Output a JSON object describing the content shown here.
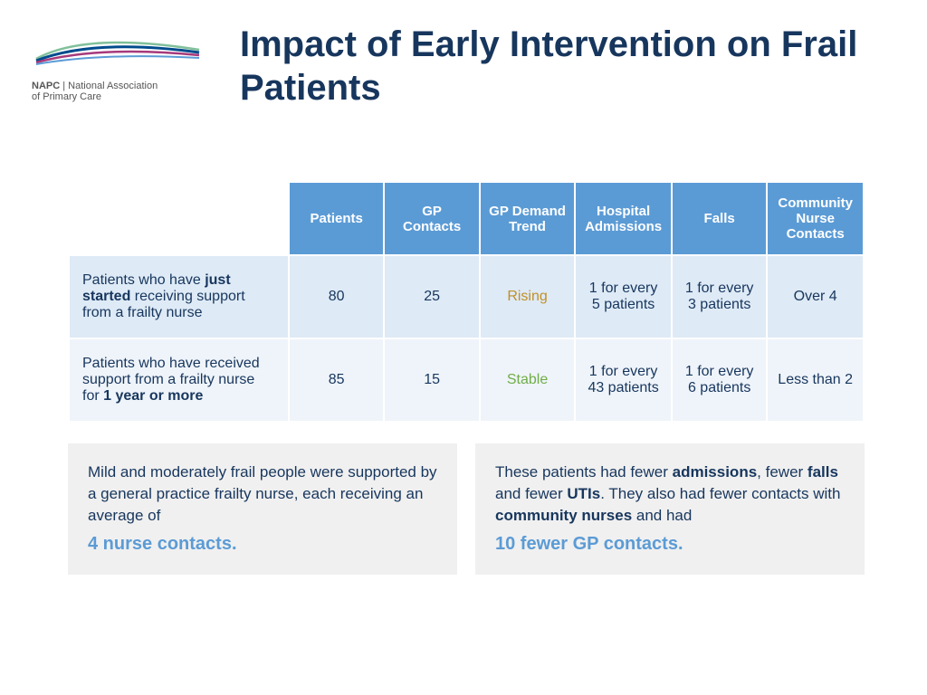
{
  "logo": {
    "acronym": "NAPC",
    "name_line1": "National Association",
    "name_line2": "of Primary Care",
    "swoosh_colors": [
      "#80c09b",
      "#004b8d",
      "#a63a7b",
      "#5b9bd5"
    ]
  },
  "title": "Impact of Early Intervention on Frail Patients",
  "colors": {
    "title": "#17365d",
    "header_bg": "#5b9bd5",
    "header_text": "#ffffff",
    "row_a_bg": "#deeaf6",
    "row_b_bg": "#eff4fa",
    "body_text": "#17365d",
    "rising": "#c09028",
    "stable": "#70ad47",
    "callout_bg": "#f0f0f0",
    "highlight": "#5b9bd5"
  },
  "typography": {
    "title_fontsize": 40,
    "table_header_fontsize": 15,
    "table_body_fontsize": 16,
    "callout_fontsize": 17,
    "highlight_fontsize": 20
  },
  "table": {
    "columns": [
      "Patients",
      "GP Contacts",
      "GP Demand Trend",
      "Hospital Admissions",
      "Falls",
      "Community Nurse Contacts"
    ],
    "rows": [
      {
        "label_pre": "Patients who have ",
        "label_bold": "just started",
        "label_post": " receiving support from a frailty nurse",
        "patients": "80",
        "gp_contacts": "25",
        "trend": "Rising",
        "trend_class": "trend-rising",
        "hospital": "1 for every 5 patients",
        "falls": "1 for every 3 patients",
        "community": "Over 4"
      },
      {
        "label_pre": "Patients who have received support from a frailty nurse for ",
        "label_bold": "1 year or more",
        "label_post": "",
        "patients": "85",
        "gp_contacts": "15",
        "trend": "Stable",
        "trend_class": "trend-stable",
        "hospital": "1 for every 43 patients",
        "falls": "1 for every 6 patients",
        "community": "Less than 2"
      }
    ]
  },
  "callouts": [
    {
      "body_parts": [
        {
          "t": "Mild and moderately frail people were supported by a general practice frailty nurse, each receiving an average of",
          "b": false
        }
      ],
      "highlight": "4 nurse contacts."
    },
    {
      "body_parts": [
        {
          "t": "These patients had fewer ",
          "b": false
        },
        {
          "t": "admissions",
          "b": true
        },
        {
          "t": ", fewer ",
          "b": false
        },
        {
          "t": "falls",
          "b": true
        },
        {
          "t": " and fewer ",
          "b": false
        },
        {
          "t": "UTIs",
          "b": true
        },
        {
          "t": ". They also had fewer contacts with ",
          "b": false
        },
        {
          "t": "community nurses",
          "b": true
        },
        {
          "t": " and had",
          "b": false
        }
      ],
      "highlight": "10 fewer GP contacts."
    }
  ]
}
